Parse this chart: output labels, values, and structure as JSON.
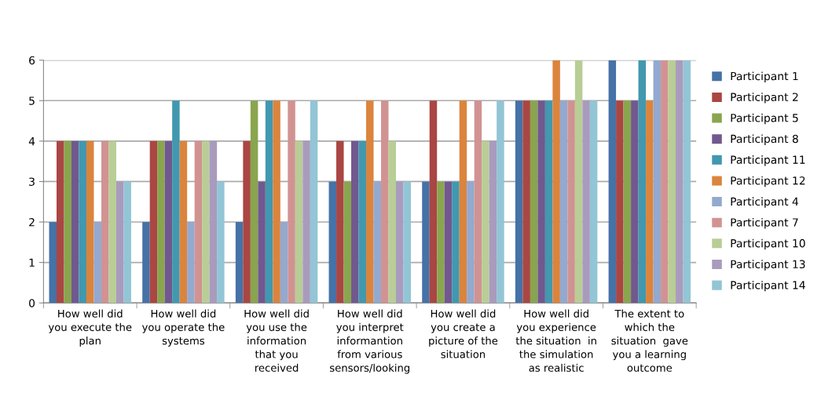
{
  "chart_data": {
    "type": "bar",
    "categories": [
      "How well did\nyou execute the\nplan",
      "How well did\nyou operate the\nsystems",
      "How well did\nyou use the\ninformation\nthat you\nreceived",
      "How well did\nyou interpret\ninformantion\nfrom various\nsensors/looking",
      "How well did\nyou create a\npicture of the\nsituation",
      "How well did\nyou experience\nthe situation  in\nthe simulation\nas realistic",
      "The extent to\nwhich the\nsituation  gave\nyou a learning\noutcome"
    ],
    "series": [
      {
        "name": "Participant 1",
        "color": "#4572a7",
        "values": [
          2,
          2,
          2,
          3,
          3,
          5,
          6
        ]
      },
      {
        "name": "Participant 2",
        "color": "#aa4643",
        "values": [
          4,
          4,
          4,
          4,
          5,
          5,
          5
        ]
      },
      {
        "name": "Participant 5",
        "color": "#89a54e",
        "values": [
          4,
          4,
          5,
          3,
          3,
          5,
          5
        ]
      },
      {
        "name": "Participant 8",
        "color": "#71588f",
        "values": [
          4,
          4,
          3,
          4,
          3,
          5,
          5
        ]
      },
      {
        "name": "Participant 11",
        "color": "#4198af",
        "values": [
          4,
          5,
          5,
          4,
          3,
          5,
          6
        ]
      },
      {
        "name": "Participant 12",
        "color": "#db843d",
        "values": [
          4,
          4,
          5,
          5,
          5,
          6,
          5
        ]
      },
      {
        "name": "Participant 4",
        "color": "#93a9cf",
        "values": [
          2,
          2,
          2,
          3,
          3,
          5,
          6
        ]
      },
      {
        "name": "Participant 7",
        "color": "#d19392",
        "values": [
          4,
          4,
          5,
          5,
          5,
          5,
          6
        ]
      },
      {
        "name": "Participant 10",
        "color": "#b9cd96",
        "values": [
          4,
          4,
          4,
          4,
          4,
          6,
          6
        ]
      },
      {
        "name": "Participant 13",
        "color": "#a99bbd",
        "values": [
          3,
          4,
          4,
          3,
          4,
          5,
          6
        ]
      },
      {
        "name": "Participant 14",
        "color": "#92c5d5",
        "values": [
          3,
          3,
          5,
          3,
          5,
          5,
          6
        ]
      }
    ],
    "ylim": [
      0,
      6
    ],
    "yticks": [
      0,
      1,
      2,
      3,
      4,
      5,
      6
    ],
    "grid": "y",
    "legend": "right"
  }
}
